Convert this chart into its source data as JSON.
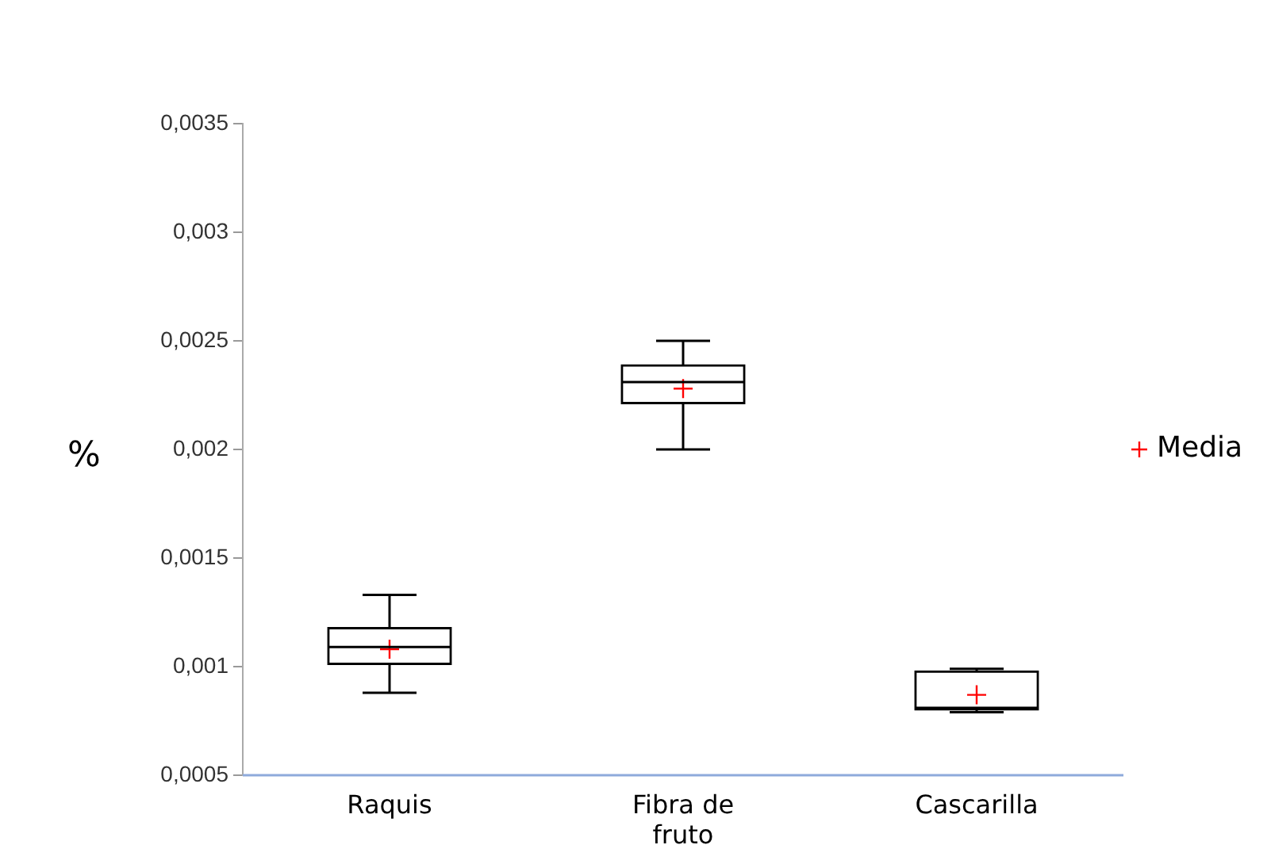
{
  "chart_data": {
    "type": "box",
    "ylabel": "%",
    "categories": [
      "Raquis",
      "Fibra de fruto",
      "Cascarilla"
    ],
    "boxes": [
      {
        "low": 0.00088,
        "q1": 0.00101,
        "median": 0.00109,
        "q3": 0.00118,
        "high": 0.00133
      },
      {
        "low": 0.002,
        "q1": 0.00221,
        "median": 0.00231,
        "q3": 0.00239,
        "high": 0.0025
      },
      {
        "low": 0.00079,
        "q1": 0.0008,
        "median": 0.00081,
        "q3": 0.00098,
        "high": 0.00099
      }
    ],
    "series": [
      {
        "name": "Media",
        "type": "scatter",
        "color": "#ff0000",
        "x": [
          "Raquis",
          "Fibra de fruto",
          "Cascarilla"
        ],
        "values": [
          0.00108,
          0.00228,
          0.00087
        ]
      }
    ],
    "marker": "cross",
    "legend": "right",
    "grid": false,
    "ylim": [
      0.0005,
      0.0035
    ],
    "yticks": [
      {
        "value": 0.0005,
        "label": "0,0005"
      },
      {
        "value": 0.001,
        "label": "0,001"
      },
      {
        "value": 0.0015,
        "label": "0,0015"
      },
      {
        "value": 0.002,
        "label": "0,002"
      },
      {
        "value": 0.0025,
        "label": "0,0025"
      },
      {
        "value": 0.003,
        "label": "0,003"
      },
      {
        "value": 0.0035,
        "label": "0,0035"
      }
    ]
  }
}
